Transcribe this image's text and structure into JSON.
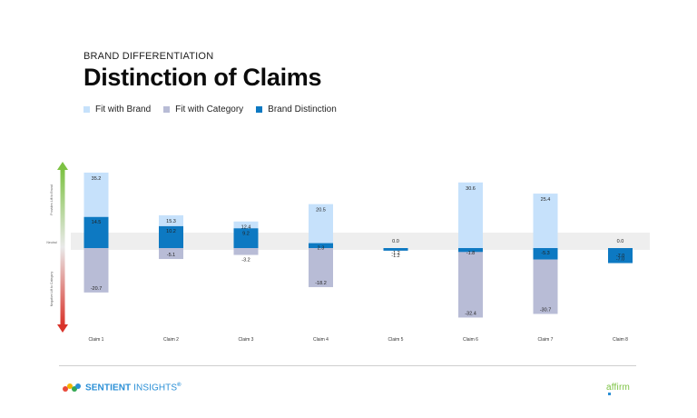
{
  "header": {
    "kicker": "BRAND DIFFERENTIATION",
    "title": "Distinction of Claims"
  },
  "legend": [
    {
      "label": "Fit with Brand",
      "color": "#c6e1fb"
    },
    {
      "label": "Fit with Category",
      "color": "#b8bcd6"
    },
    {
      "label": "Brand Distinction",
      "color": "#0d79c2"
    }
  ],
  "chart_data": {
    "type": "bar",
    "categories": [
      "Claim 1",
      "Claim 2",
      "Claim 3",
      "Claim 4",
      "Claim 5",
      "Claim 6",
      "Claim 7",
      "Claim 8"
    ],
    "series": [
      {
        "name": "Fit with Brand",
        "values": [
          35.2,
          15.3,
          12.4,
          20.5,
          0.0,
          30.6,
          25.4,
          0.0
        ],
        "color": "#c6e1fb"
      },
      {
        "name": "Fit with Category",
        "values": [
          -20.7,
          -5.1,
          -3.2,
          -18.2,
          -1.2,
          -32.4,
          -30.7,
          -7.0
        ],
        "color": "#b8bcd6"
      },
      {
        "name": "Brand Distinction",
        "values": [
          14.5,
          10.2,
          9.2,
          2.3,
          -1.2,
          -1.8,
          -5.3,
          -7.0
        ],
        "color": "#0d79c2"
      }
    ],
    "side_axis": {
      "top_label": "Provides Lift to Brand",
      "middle_label": "Neutral",
      "bottom_label": "Negative Lift to Category"
    },
    "ylim": [
      -35,
      38
    ]
  },
  "footer": {
    "logo_text": "SENTIENT",
    "logo_text2": " INSIGHTS",
    "logo_mark": "®",
    "partner": "affirm"
  }
}
